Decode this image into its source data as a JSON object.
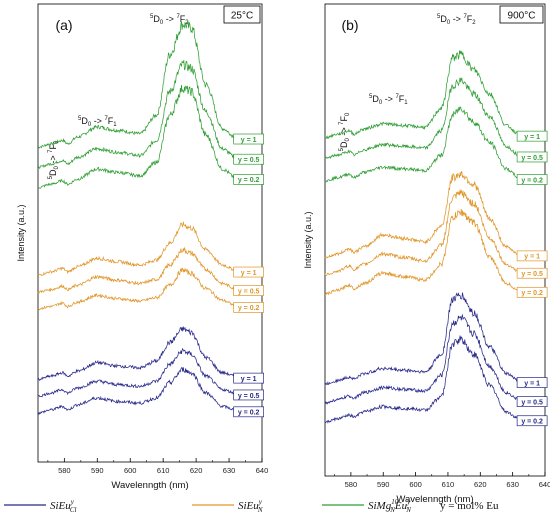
{
  "chart_data": [
    {
      "type": "line",
      "panel_label": "(a)",
      "temperature": "25°C",
      "xlabel": "Wavelenngth (nm)",
      "ylabel": "Intensity (a.u.)",
      "xlim": [
        572,
        640
      ],
      "xticks": [
        580,
        590,
        600,
        610,
        620,
        630,
        640
      ],
      "yticks_shown": false,
      "annotations": [
        {
          "super1": "5",
          "main1": "D",
          "sub1": "0",
          "arrow": " -> ",
          "super2": "7",
          "main2": "F",
          "sub2": "2"
        },
        {
          "super1": "5",
          "main1": "D",
          "sub1": "0",
          "arrow": " -> ",
          "super2": "7",
          "main2": "F",
          "sub2": "1"
        },
        {
          "super1": "5",
          "main1": "D",
          "sub1": "0",
          "arrow": " -> ",
          "super2": "7",
          "main2": "F",
          "sub2": "0"
        }
      ],
      "series": [
        {
          "group": "SiMgN10EuNy",
          "label": "y = 1",
          "color": "#2f9e34",
          "x": [
            572,
            576,
            579.5,
            581,
            584,
            590,
            596,
            603,
            608,
            612,
            616,
            618.5,
            623,
            628,
            632
          ],
          "y": [
            9.35,
            9.45,
            9.55,
            9.45,
            9.65,
            9.95,
            9.85,
            9.75,
            10.3,
            12.1,
            13.0,
            12.9,
            11.2,
            9.9,
            9.65
          ]
        },
        {
          "group": "SiMgN10EuNy",
          "label": "y = 0.5",
          "color": "#2f9e34",
          "x": [
            572,
            576,
            579.5,
            581,
            584,
            590,
            596,
            603,
            608,
            612,
            616,
            618.5,
            623,
            628,
            632
          ],
          "y": [
            8.75,
            8.85,
            8.95,
            8.85,
            9.05,
            9.3,
            9.2,
            9.1,
            9.55,
            11.0,
            11.8,
            11.7,
            10.4,
            9.3,
            9.05
          ]
        },
        {
          "group": "SiMgN10EuNy",
          "label": "y = 0.2",
          "color": "#2f9e34",
          "x": [
            572,
            576,
            579.5,
            581,
            584,
            590,
            596,
            603,
            608,
            612,
            616,
            618.5,
            623,
            628,
            632
          ],
          "y": [
            8.15,
            8.25,
            8.35,
            8.25,
            8.4,
            8.7,
            8.6,
            8.5,
            8.9,
            10.3,
            11.1,
            11.0,
            9.7,
            8.7,
            8.45
          ]
        },
        {
          "group": "SiEuNy",
          "label": "y = 1",
          "color": "#e0962a",
          "x": [
            572,
            576,
            579.5,
            581,
            584,
            590,
            596,
            603,
            608,
            612,
            616,
            618.5,
            623,
            628,
            632
          ],
          "y": [
            5.55,
            5.65,
            5.75,
            5.65,
            5.8,
            6.05,
            5.95,
            5.85,
            6.0,
            6.5,
            7.05,
            6.95,
            6.3,
            5.85,
            5.7
          ]
        },
        {
          "group": "SiEuNy",
          "label": "y = 0.5",
          "color": "#e0962a",
          "x": [
            572,
            576,
            579.5,
            581,
            584,
            590,
            596,
            603,
            608,
            612,
            616,
            618.5,
            623,
            628,
            632
          ],
          "y": [
            5.05,
            5.12,
            5.22,
            5.12,
            5.25,
            5.5,
            5.4,
            5.3,
            5.42,
            5.85,
            6.3,
            6.2,
            5.72,
            5.3,
            5.15
          ]
        },
        {
          "group": "SiEuNy",
          "label": "y = 0.2",
          "color": "#e0962a",
          "x": [
            572,
            576,
            579.5,
            581,
            584,
            590,
            596,
            603,
            608,
            612,
            616,
            618.5,
            623,
            628,
            632
          ],
          "y": [
            4.55,
            4.62,
            4.72,
            4.62,
            4.75,
            4.95,
            4.85,
            4.78,
            4.88,
            5.25,
            5.7,
            5.6,
            5.15,
            4.8,
            4.65
          ]
        },
        {
          "group": "SiEuCly",
          "label": "y = 1",
          "color": "#27288a",
          "x": [
            572,
            576,
            579.5,
            581,
            584,
            590,
            596,
            603,
            608,
            612,
            616,
            618.5,
            623,
            628,
            632
          ],
          "y": [
            2.45,
            2.55,
            2.65,
            2.55,
            2.7,
            2.95,
            2.85,
            2.8,
            3.0,
            3.55,
            3.95,
            3.85,
            3.1,
            2.65,
            2.55
          ]
        },
        {
          "group": "SiEuCly",
          "label": "y = 0.5",
          "color": "#27288a",
          "x": [
            572,
            576,
            579.5,
            581,
            584,
            590,
            596,
            603,
            608,
            612,
            616,
            618.5,
            623,
            628,
            632
          ],
          "y": [
            1.95,
            2.05,
            2.15,
            2.05,
            2.2,
            2.4,
            2.3,
            2.25,
            2.4,
            2.9,
            3.3,
            3.2,
            2.55,
            2.15,
            2.05
          ]
        },
        {
          "group": "SiEuCly",
          "label": "y = 0.2",
          "color": "#27288a",
          "x": [
            572,
            576,
            579.5,
            581,
            584,
            590,
            596,
            603,
            608,
            612,
            616,
            618.5,
            623,
            628,
            632
          ],
          "y": [
            1.45,
            1.55,
            1.65,
            1.55,
            1.7,
            1.9,
            1.8,
            1.75,
            1.9,
            2.35,
            2.75,
            2.65,
            2.05,
            1.65,
            1.55
          ]
        }
      ]
    },
    {
      "type": "line",
      "panel_label": "(b)",
      "temperature": "900°C",
      "xlabel": "Wavelenngth (nm)",
      "ylabel": "Intensity (a.u.)",
      "xlim": [
        572,
        640
      ],
      "xticks": [
        580,
        590,
        600,
        610,
        620,
        630,
        640
      ],
      "yticks_shown": false,
      "annotations": [
        {
          "super1": "5",
          "main1": "D",
          "sub1": "0",
          "arrow": " -> ",
          "super2": "7",
          "main2": "F",
          "sub2": "2"
        },
        {
          "super1": "5",
          "main1": "D",
          "sub1": "0",
          "arrow": " -> ",
          "super2": "7",
          "main2": "F",
          "sub2": "1"
        },
        {
          "super1": "5",
          "main1": "D",
          "sub1": "0",
          "arrow": " -> ",
          "super2": "7",
          "main2": "F",
          "sub2": "0"
        }
      ],
      "series": [
        {
          "group": "SiMgN10EuNy",
          "label": "y = 1",
          "color": "#2f9e34",
          "x": [
            572,
            576,
            579.5,
            581,
            584,
            590,
            596,
            603,
            608,
            611.5,
            614,
            618,
            623,
            628,
            632
          ],
          "y": [
            9.75,
            9.85,
            9.95,
            9.85,
            10.0,
            10.15,
            10.1,
            10.05,
            10.6,
            12.05,
            12.15,
            11.7,
            11.0,
            10.1,
            9.85
          ]
        },
        {
          "group": "SiMgN10EuNy",
          "label": "y = 0.5",
          "color": "#2f9e34",
          "x": [
            572,
            576,
            579.5,
            581,
            584,
            590,
            596,
            603,
            608,
            611.5,
            614,
            618,
            623,
            628,
            632
          ],
          "y": [
            9.15,
            9.25,
            9.35,
            9.25,
            9.4,
            9.55,
            9.5,
            9.45,
            9.95,
            11.25,
            11.4,
            11.0,
            10.35,
            9.5,
            9.25
          ]
        },
        {
          "group": "SiMgN10EuNy",
          "label": "y = 0.2",
          "color": "#2f9e34",
          "x": [
            572,
            576,
            579.5,
            581,
            584,
            590,
            596,
            603,
            608,
            611.5,
            614,
            618,
            623,
            628,
            632
          ],
          "y": [
            8.5,
            8.6,
            8.7,
            8.6,
            8.75,
            8.9,
            8.85,
            8.8,
            9.25,
            10.4,
            10.6,
            10.2,
            9.6,
            8.85,
            8.6
          ]
        },
        {
          "group": "SiEuNy",
          "label": "y = 1",
          "color": "#e0962a",
          "x": [
            572,
            576,
            579.5,
            581,
            584,
            590,
            596,
            603,
            608,
            611.5,
            614,
            618,
            623,
            628,
            632
          ],
          "y": [
            6.3,
            6.4,
            6.55,
            6.45,
            6.6,
            6.95,
            6.85,
            6.75,
            7.2,
            8.6,
            8.7,
            8.4,
            7.4,
            6.6,
            6.4
          ]
        },
        {
          "group": "SiEuNy",
          "label": "y = 0.5",
          "color": "#e0962a",
          "x": [
            572,
            576,
            579.5,
            581,
            584,
            590,
            596,
            603,
            608,
            611.5,
            614,
            618,
            623,
            628,
            632
          ],
          "y": [
            5.8,
            5.9,
            6.05,
            5.95,
            6.1,
            6.4,
            6.3,
            6.2,
            6.65,
            8.0,
            8.15,
            7.85,
            6.85,
            6.1,
            5.9
          ]
        },
        {
          "group": "SiEuNy",
          "label": "y = 0.2",
          "color": "#e0962a",
          "x": [
            572,
            576,
            579.5,
            581,
            584,
            590,
            596,
            603,
            608,
            611.5,
            614,
            618,
            623,
            628,
            632
          ],
          "y": [
            5.25,
            5.35,
            5.5,
            5.4,
            5.55,
            5.85,
            5.75,
            5.65,
            6.1,
            7.45,
            7.6,
            7.3,
            6.3,
            5.55,
            5.35
          ]
        },
        {
          "group": "SiEuCly",
          "label": "y = 1",
          "color": "#27288a",
          "x": [
            572,
            576,
            579.5,
            581,
            584,
            590,
            596,
            603,
            608,
            611.5,
            614,
            618,
            623,
            628,
            632
          ],
          "y": [
            2.65,
            2.75,
            2.85,
            2.8,
            2.95,
            3.1,
            3.05,
            3.0,
            3.5,
            5.1,
            5.2,
            4.7,
            3.7,
            2.95,
            2.75
          ]
        },
        {
          "group": "SiEuCly",
          "label": "y = 0.5",
          "color": "#27288a",
          "x": [
            572,
            576,
            579.5,
            581,
            584,
            590,
            596,
            603,
            608,
            611.5,
            614,
            618,
            623,
            628,
            632
          ],
          "y": [
            2.1,
            2.2,
            2.3,
            2.25,
            2.4,
            2.55,
            2.5,
            2.45,
            2.9,
            4.4,
            4.55,
            4.1,
            3.15,
            2.4,
            2.2
          ]
        },
        {
          "group": "SiEuCly",
          "label": "y = 0.2",
          "color": "#27288a",
          "x": [
            572,
            576,
            579.5,
            581,
            584,
            590,
            596,
            603,
            608,
            611.5,
            614,
            618,
            623,
            628,
            632
          ],
          "y": [
            1.55,
            1.65,
            1.75,
            1.7,
            1.85,
            2.0,
            1.95,
            1.9,
            2.3,
            3.8,
            3.95,
            3.5,
            2.6,
            1.85,
            1.65
          ]
        }
      ]
    }
  ],
  "legend": [
    {
      "base": "SiEu",
      "sup": "y",
      "sub": "Cl",
      "color": "#27288a"
    },
    {
      "base": "SiEu",
      "sup": "y",
      "sub": "N",
      "color": "#e0962a"
    },
    {
      "base": "SiMg",
      "sup1": "10",
      "sub1": "N",
      "base2": "Eu",
      "sup": "y",
      "sub": "N",
      "color": "#2f9e34"
    }
  ],
  "legend_note": "y = mol% Eu"
}
